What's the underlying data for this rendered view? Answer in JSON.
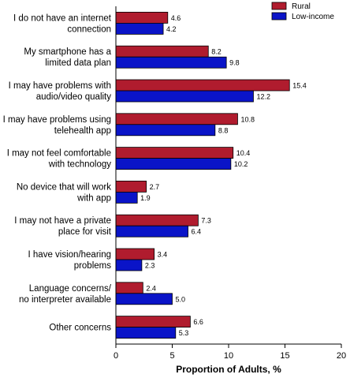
{
  "chart_data": {
    "type": "bar",
    "orientation": "horizontal",
    "categories": [
      [
        "I do not have an internet",
        "connection"
      ],
      [
        "My smartphone has a",
        "limited data plan"
      ],
      [
        "I may have problems with",
        "audio/video quality"
      ],
      [
        "I may have problems using",
        "telehealth app"
      ],
      [
        "I may not feel comfortable",
        "with technology"
      ],
      [
        "No device that will work",
        "with app"
      ],
      [
        "I may not have a private",
        "place for visit"
      ],
      [
        "I have vision/hearing",
        "problems"
      ],
      [
        "Language concerns/",
        "no interpreter available"
      ],
      [
        "Other concerns"
      ]
    ],
    "series": [
      {
        "name": "Rural",
        "color": "#b01c2e",
        "values": [
          4.6,
          8.2,
          15.4,
          10.8,
          10.4,
          2.7,
          7.3,
          3.4,
          2.4,
          6.6
        ],
        "labels": [
          "4.6",
          "8.2",
          "15.4",
          "10.8",
          "10.4",
          "2.7",
          "7.3",
          "3.4",
          "2.4",
          "6.6"
        ]
      },
      {
        "name": "Low-income",
        "color": "#0a14c8",
        "values": [
          4.2,
          9.8,
          12.2,
          8.8,
          10.2,
          1.9,
          6.4,
          2.3,
          5.0,
          5.3
        ],
        "labels": [
          "4.2",
          "9.8",
          "12.2",
          "8.8",
          "10.2",
          "1.9",
          "6.4",
          "2.3",
          "5.0",
          "5.3"
        ]
      }
    ],
    "xlabel": "Proportion of Adults, %",
    "xlim": [
      0,
      20
    ],
    "xticks": [
      0,
      5,
      10,
      15,
      20
    ],
    "xtick_labels": [
      "0",
      "5",
      "10",
      "15",
      "20"
    ],
    "grid": false,
    "legend_position": "top-right"
  }
}
